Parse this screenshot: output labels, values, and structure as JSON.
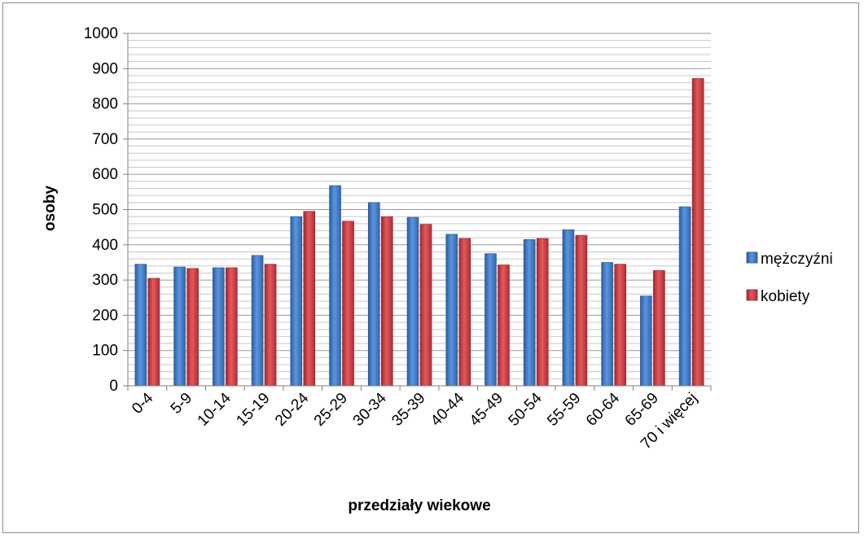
{
  "chart_data": {
    "type": "bar",
    "categories": [
      "0-4",
      "5-9",
      "10-14",
      "15-19",
      "20-24",
      "25-29",
      "30-34",
      "35-39",
      "40-44",
      "45-49",
      "50-54",
      "55-59",
      "60-64",
      "65-69",
      "70 i więcej"
    ],
    "series": [
      {
        "name": "mężczyźni",
        "values": [
          345,
          337,
          335,
          370,
          480,
          568,
          520,
          478,
          430,
          375,
          415,
          443,
          350,
          255,
          508
        ],
        "color": "#3a74c4"
      },
      {
        "name": "kobiety",
        "values": [
          305,
          333,
          335,
          345,
          495,
          467,
          480,
          458,
          418,
          343,
          418,
          427,
          345,
          327,
          872
        ],
        "color": "#c8343c"
      }
    ],
    "title": "",
    "xlabel": "przedziały wiekowe",
    "ylabel": "osoby",
    "ylim": [
      0,
      1000
    ],
    "yticks": [
      "0",
      "100",
      "200",
      "300",
      "400",
      "500",
      "600",
      "700",
      "800",
      "900",
      "1000"
    ],
    "grid": true,
    "legend_position": "right"
  }
}
